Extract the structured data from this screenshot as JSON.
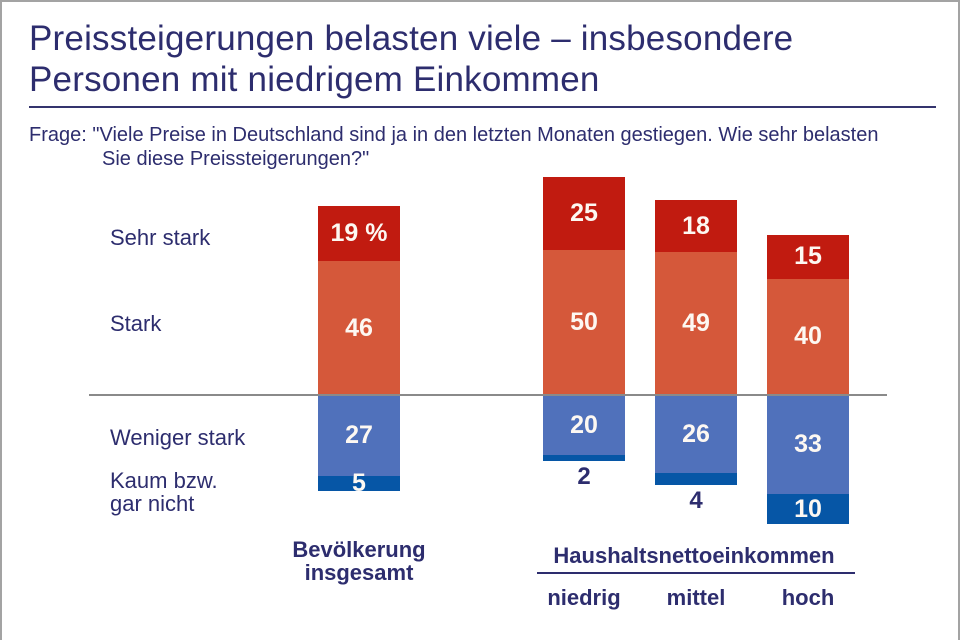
{
  "header": {
    "title": "Preissteigerungen belasten viele – insbesondere\nPersonen mit niedrigem Einkommen",
    "question_line1": "Frage: \"Viele Preise in Deutschland sind ja in den letzten Monaten gestiegen. Wie sehr belasten",
    "question_line2": "Sie diese Preissteigerungen?\""
  },
  "rows": {
    "sehr_stark": "Sehr stark",
    "stark": "Stark",
    "weniger_stark": "Weniger stark",
    "kaum": "Kaum bzw.\ngar nicht"
  },
  "footer": {
    "bar1_label": "Bevölkerung\ninsgesamt",
    "group_label": "Haushaltsnettoeinkommen",
    "group_items": [
      "niedrig",
      "mittel",
      "hoch"
    ]
  },
  "colors": {
    "navy": "#2d2d6e",
    "sehr_stark_red": "#c11b10",
    "stark_orange": "#d5583a",
    "weniger_blue": "#5071bb",
    "kaum_darkblue": "#0656a6",
    "baseline_gray": "#8a8a8a",
    "frame_gray": "#a3a3a3"
  },
  "chart_data": {
    "type": "bar",
    "variant": "diverging-stacked-column",
    "unit": "percent",
    "title": "Preissteigerungen belasten viele – insbesondere Personen mit niedrigem Einkommen",
    "categories": [
      "Bevölkerung insgesamt",
      "niedrig",
      "mittel",
      "hoch"
    ],
    "category_group": {
      "label": "Haushaltsnettoeinkommen",
      "members": [
        "niedrig",
        "mittel",
        "hoch"
      ]
    },
    "series": [
      {
        "name": "Sehr stark",
        "direction": "up",
        "color": "#c11b10",
        "values": [
          19,
          25,
          18,
          15
        ],
        "labels": [
          "19 %",
          "25",
          "18",
          "15"
        ]
      },
      {
        "name": "Stark",
        "direction": "up",
        "color": "#d5583a",
        "values": [
          46,
          50,
          49,
          40
        ],
        "labels": [
          "46",
          "50",
          "49",
          "40"
        ]
      },
      {
        "name": "Weniger stark",
        "direction": "down",
        "color": "#5071bb",
        "values": [
          27,
          20,
          26,
          33
        ],
        "labels": [
          "27",
          "20",
          "26",
          "33"
        ]
      },
      {
        "name": "Kaum bzw. gar nicht",
        "direction": "down",
        "color": "#0656a6",
        "values": [
          5,
          2,
          4,
          10
        ],
        "labels": [
          "5",
          "2",
          "4",
          "10"
        ]
      }
    ],
    "legend_position": "row labels at left of first bar",
    "baseline": "zero line between Stark and Weniger stark",
    "grid": false
  }
}
